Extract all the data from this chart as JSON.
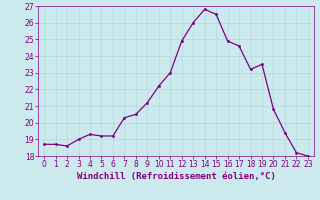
{
  "x": [
    0,
    1,
    2,
    3,
    4,
    5,
    6,
    7,
    8,
    9,
    10,
    11,
    12,
    13,
    14,
    15,
    16,
    17,
    18,
    19,
    20,
    21,
    22,
    23
  ],
  "y": [
    18.7,
    18.7,
    18.6,
    19.0,
    19.3,
    19.2,
    19.2,
    20.3,
    20.5,
    21.2,
    22.2,
    23.0,
    24.9,
    26.0,
    26.8,
    26.5,
    24.9,
    24.6,
    23.2,
    23.5,
    20.8,
    19.4,
    18.2,
    18.0
  ],
  "line_color": "#800080",
  "marker": ".",
  "marker_size": 3,
  "xlabel": "Windchill (Refroidissement éolien,°C)",
  "xlim": [
    -0.5,
    23.5
  ],
  "ylim": [
    18,
    27
  ],
  "yticks": [
    18,
    19,
    20,
    21,
    22,
    23,
    24,
    25,
    26,
    27
  ],
  "xticks": [
    0,
    1,
    2,
    3,
    4,
    5,
    6,
    7,
    8,
    9,
    10,
    11,
    12,
    13,
    14,
    15,
    16,
    17,
    18,
    19,
    20,
    21,
    22,
    23
  ],
  "bg_color": "#cce9ee",
  "grid_color": "#b0d8df",
  "line_width": 0.9,
  "tick_color": "#800080",
  "label_color": "#800080",
  "xlabel_fontsize": 6.5,
  "tick_fontsize": 5.5
}
